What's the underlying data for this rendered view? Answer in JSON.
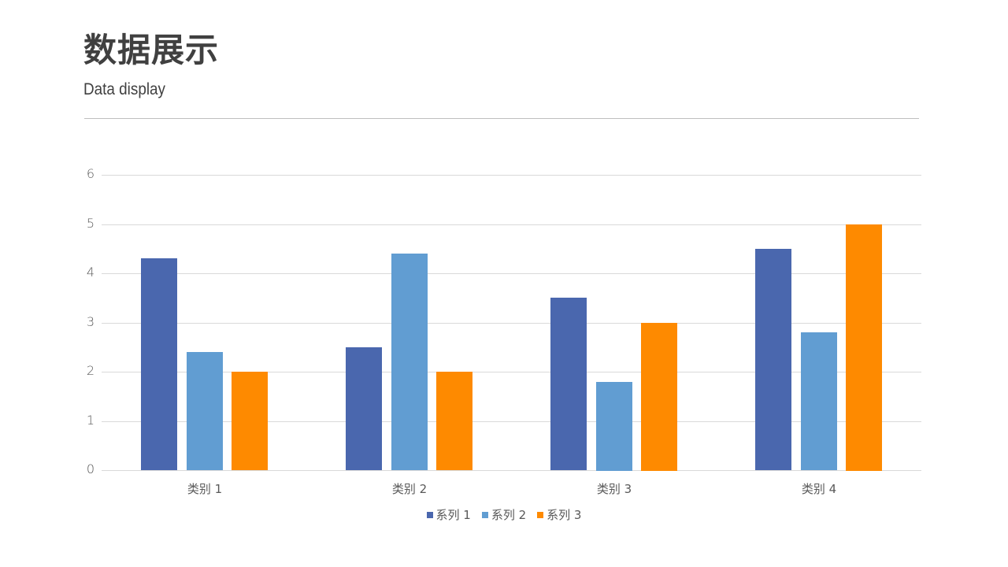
{
  "header": {
    "title": "数据展示",
    "subtitle": "Data display"
  },
  "colors": {
    "series1": "#4a67ae",
    "series2": "#619dd2",
    "series3": "#fe8a00",
    "grid": "#d9d9d9",
    "text": "#595959"
  },
  "chart_data": {
    "type": "bar",
    "title": "",
    "xlabel": "",
    "ylabel": "",
    "ylim": [
      0,
      6
    ],
    "yticks": [
      "0",
      "1",
      "2",
      "3",
      "4",
      "5",
      "6"
    ],
    "grid": true,
    "legend_position": "bottom",
    "categories": [
      "类别 1",
      "类别 2",
      "类别 3",
      "类别 4"
    ],
    "series": [
      {
        "name": "系列 1",
        "values": [
          4.3,
          2.5,
          3.5,
          4.5
        ]
      },
      {
        "name": "系列 2",
        "values": [
          2.4,
          4.4,
          1.8,
          2.8
        ]
      },
      {
        "name": "系列 3",
        "values": [
          2,
          2,
          3,
          5
        ]
      }
    ]
  }
}
